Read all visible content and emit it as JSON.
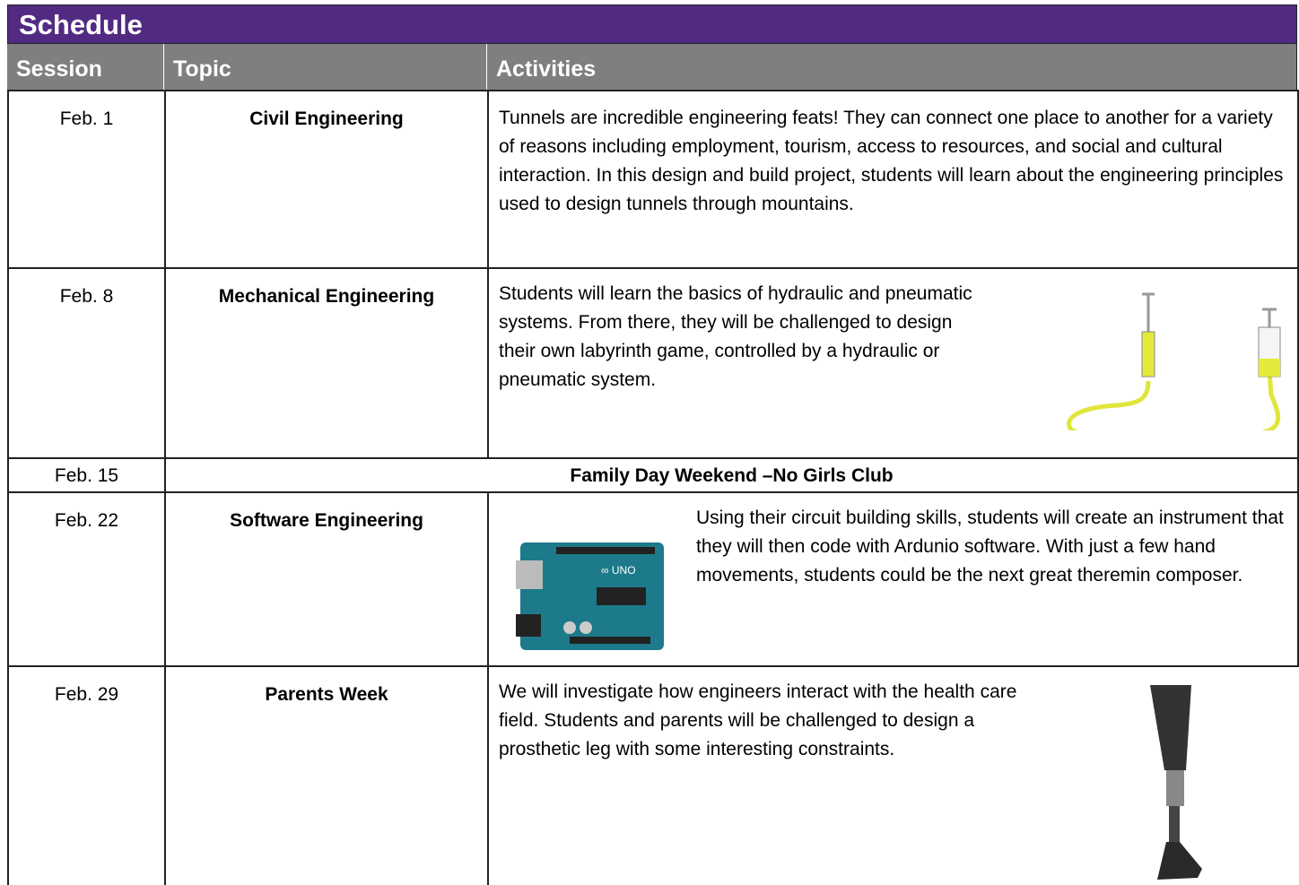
{
  "header": {
    "title": "Schedule"
  },
  "table": {
    "columns": [
      "Session",
      "Topic",
      "Activities"
    ],
    "rows": [
      [
        "Feb. 1",
        "Civil Engineering",
        "Tunnels are incredible engineering feats! They can connect one place to another for a variety of reasons including employment, tourism, access to resources, and social and cultural interaction. In this design and build project, students will learn about the engineering principles used to design tunnels through mountains."
      ],
      [
        "Feb. 8",
        "Mechanical Engineering",
        "Students will learn the basics of hydraulic and pneumatic systems. From there, they will be challenged to design their own labyrinth game, controlled by a hydraulic or pneumatic system."
      ],
      [
        "Feb. 15",
        "Family Day Weekend –No Girls Club"
      ],
      [
        "Feb. 22",
        "Software Engineering",
        "Using their circuit building skills, students will create an instrument that they will then code with Ardunio software. With just a few hand movements, students could be the next great theremin composer."
      ],
      [
        "Feb. 29",
        "Parents Week",
        "We will investigate how engineers interact with the health care field. Students and parents will be challenged to design a prosthetic leg with some interesting constraints."
      ]
    ]
  }
}
